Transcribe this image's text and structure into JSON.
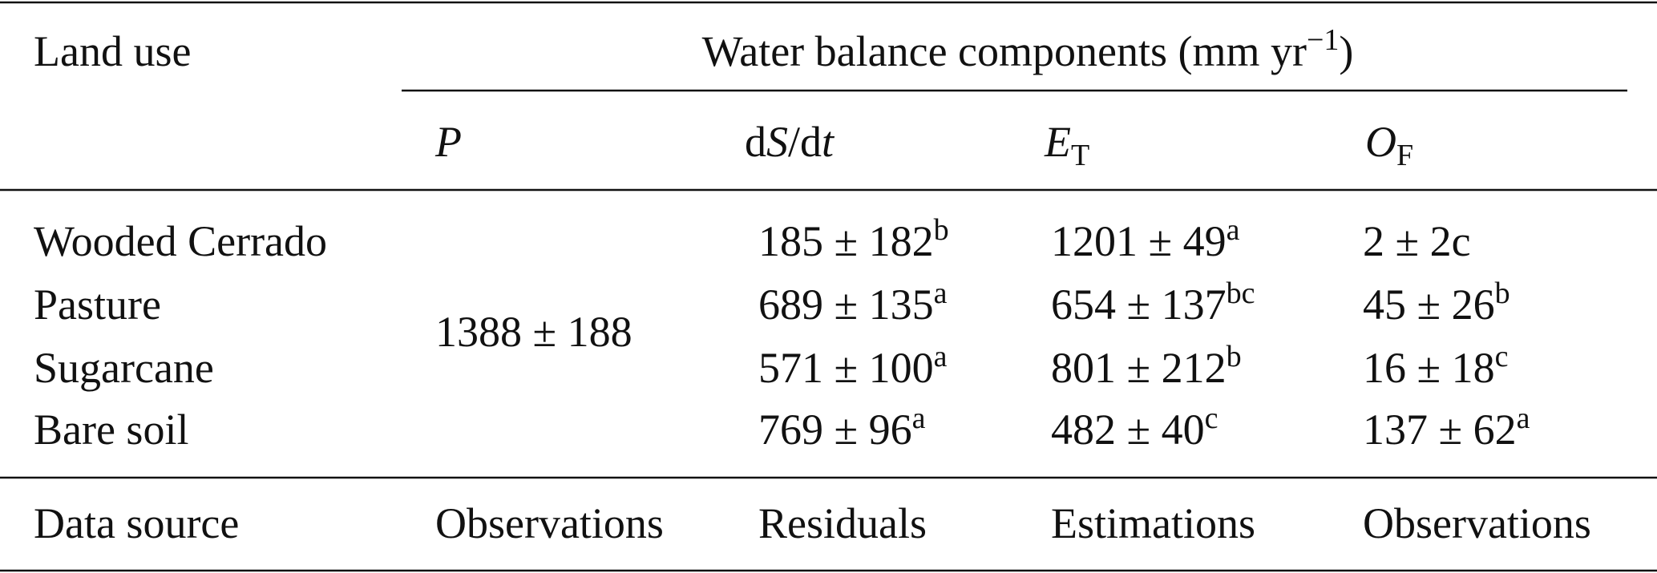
{
  "table": {
    "header": {
      "row_label": "Land use",
      "group": [
        {
          "text": "Water balance components (mm yr"
        },
        {
          "text": "−1",
          "sup": true
        },
        {
          "text": ")"
        }
      ]
    },
    "columns": [
      [
        {
          "text": "P",
          "italic": true
        }
      ],
      [
        {
          "text": "d"
        },
        {
          "text": "S",
          "italic": true
        },
        {
          "text": "/d"
        },
        {
          "text": "t",
          "italic": true
        }
      ],
      [
        {
          "text": "E",
          "italic": true
        },
        {
          "text": "T",
          "sub": true
        }
      ],
      [
        {
          "text": "O",
          "italic": true
        },
        {
          "text": "F",
          "sub": true
        }
      ]
    ],
    "precipitation": "1388 ± 188",
    "rows": [
      {
        "label": "Wooded Cerrado",
        "cells": [
          [
            {
              "text": "185 ± 182"
            },
            {
              "text": "b",
              "sup": true
            }
          ],
          [
            {
              "text": "1201 ± 49"
            },
            {
              "text": "a",
              "sup": true
            }
          ],
          [
            {
              "text": "2 ± 2c"
            }
          ]
        ]
      },
      {
        "label": "Pasture",
        "cells": [
          [
            {
              "text": "689 ± 135"
            },
            {
              "text": "a",
              "sup": true
            }
          ],
          [
            {
              "text": "654 ± 137"
            },
            {
              "text": "bc",
              "sup": true
            }
          ],
          [
            {
              "text": "45 ± 26"
            },
            {
              "text": "b",
              "sup": true
            }
          ]
        ]
      },
      {
        "label": "Sugarcane",
        "cells": [
          [
            {
              "text": "571 ± 100"
            },
            {
              "text": "a",
              "sup": true
            }
          ],
          [
            {
              "text": "801 ± 212"
            },
            {
              "text": "b",
              "sup": true
            }
          ],
          [
            {
              "text": "16 ± 18"
            },
            {
              "text": "c",
              "sup": true
            }
          ]
        ]
      },
      {
        "label": "Bare soil",
        "cells": [
          [
            {
              "text": "769 ± 96"
            },
            {
              "text": "a",
              "sup": true
            }
          ],
          [
            {
              "text": "482 ± 40"
            },
            {
              "text": "c",
              "sup": true
            }
          ],
          [
            {
              "text": "137 ± 62"
            },
            {
              "text": "a",
              "sup": true
            }
          ]
        ]
      }
    ],
    "source": {
      "label": "Data source",
      "cells": [
        "Observations",
        "Residuals",
        "Estimations",
        "Observations"
      ]
    }
  }
}
